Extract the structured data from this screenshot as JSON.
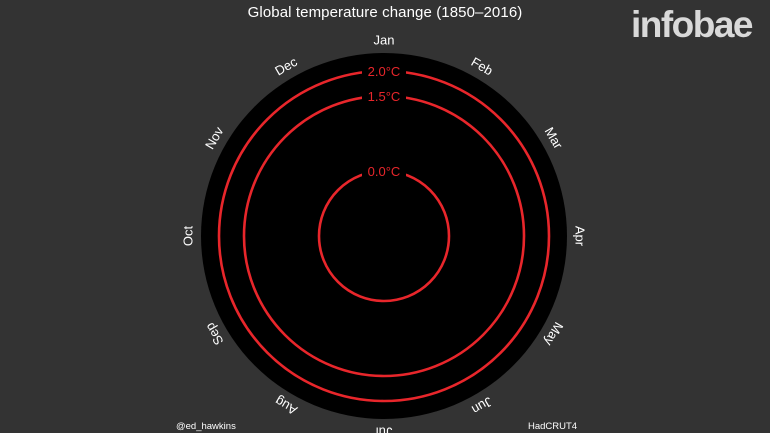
{
  "header": {
    "brand_logo": "infobae"
  },
  "colors": {
    "background": "#333333",
    "plot_disc": "#000000",
    "ring_color": "#e8262b",
    "text_color": "#ffffff"
  },
  "chart_data": {
    "type": "polar-line",
    "title": "Global temperature change (1850–2016)",
    "angular_axis": {
      "labels": [
        "Jan",
        "Feb",
        "Mar",
        "Apr",
        "May",
        "Jun",
        "Jul",
        "Aug",
        "Sep",
        "Oct",
        "Nov",
        "Dec"
      ],
      "direction": "clockwise",
      "start": "top"
    },
    "radial_axis": {
      "range": [
        -1.3,
        2.1
      ],
      "unit": "°C"
    },
    "reference_rings": [
      {
        "value": 0.0,
        "label": "0.0°C"
      },
      {
        "value": 1.5,
        "label": "1.5°C"
      },
      {
        "value": 2.0,
        "label": "2.0°C"
      }
    ],
    "series": [],
    "grid": false,
    "legend": "none"
  },
  "footer": {
    "credit_left": "@ed_hawkins",
    "credit_right": "HadCRUT4"
  }
}
